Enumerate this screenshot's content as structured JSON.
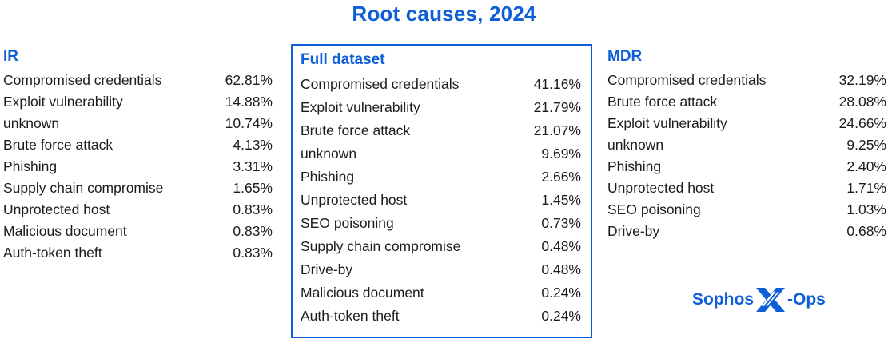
{
  "title": "Root causes, 2024",
  "colors": {
    "accent": "#0e5ed8",
    "text": "#1c1c1c",
    "background": "#ffffff"
  },
  "logo": {
    "brand": "Sophos",
    "suffix": "-Ops"
  },
  "chart_data": {
    "type": "table",
    "title": "Root causes, 2024",
    "value_unit": "percent",
    "tables": [
      {
        "name": "IR",
        "rows": [
          {
            "label": "Compromised credentials",
            "value": 62.81,
            "display": "62.81%"
          },
          {
            "label": "Exploit vulnerability",
            "value": 14.88,
            "display": "14.88%"
          },
          {
            "label": "unknown",
            "value": 10.74,
            "display": "10.74%"
          },
          {
            "label": "Brute force attack",
            "value": 4.13,
            "display": "4.13%"
          },
          {
            "label": "Phishing",
            "value": 3.31,
            "display": "3.31%"
          },
          {
            "label": "Supply chain compromise",
            "value": 1.65,
            "display": "1.65%"
          },
          {
            "label": "Unprotected host",
            "value": 0.83,
            "display": "0.83%"
          },
          {
            "label": "Malicious document",
            "value": 0.83,
            "display": "0.83%"
          },
          {
            "label": "Auth-token theft",
            "value": 0.83,
            "display": "0.83%"
          }
        ]
      },
      {
        "name": "Full dataset",
        "rows": [
          {
            "label": "Compromised credentials",
            "value": 41.16,
            "display": "41.16%"
          },
          {
            "label": "Exploit vulnerability",
            "value": 21.79,
            "display": "21.79%"
          },
          {
            "label": "Brute force attack",
            "value": 21.07,
            "display": "21.07%"
          },
          {
            "label": "unknown",
            "value": 9.69,
            "display": "9.69%"
          },
          {
            "label": "Phishing",
            "value": 2.66,
            "display": "2.66%"
          },
          {
            "label": "Unprotected host",
            "value": 1.45,
            "display": "1.45%"
          },
          {
            "label": "SEO poisoning",
            "value": 0.73,
            "display": "0.73%"
          },
          {
            "label": "Supply chain compromise",
            "value": 0.48,
            "display": "0.48%"
          },
          {
            "label": "Drive-by",
            "value": 0.48,
            "display": "0.48%"
          },
          {
            "label": "Malicious document",
            "value": 0.24,
            "display": "0.24%"
          },
          {
            "label": "Auth-token theft",
            "value": 0.24,
            "display": "0.24%"
          }
        ]
      },
      {
        "name": "MDR",
        "rows": [
          {
            "label": "Compromised credentials",
            "value": 32.19,
            "display": "32.19%"
          },
          {
            "label": "Brute force attack",
            "value": 28.08,
            "display": "28.08%"
          },
          {
            "label": "Exploit vulnerability",
            "value": 24.66,
            "display": "24.66%"
          },
          {
            "label": "unknown",
            "value": 9.25,
            "display": "9.25%"
          },
          {
            "label": "Phishing",
            "value": 2.4,
            "display": "2.40%"
          },
          {
            "label": "Unprotected host",
            "value": 1.71,
            "display": "1.71%"
          },
          {
            "label": "SEO poisoning",
            "value": 1.03,
            "display": "1.03%"
          },
          {
            "label": "Drive-by",
            "value": 0.68,
            "display": "0.68%"
          }
        ]
      }
    ]
  }
}
